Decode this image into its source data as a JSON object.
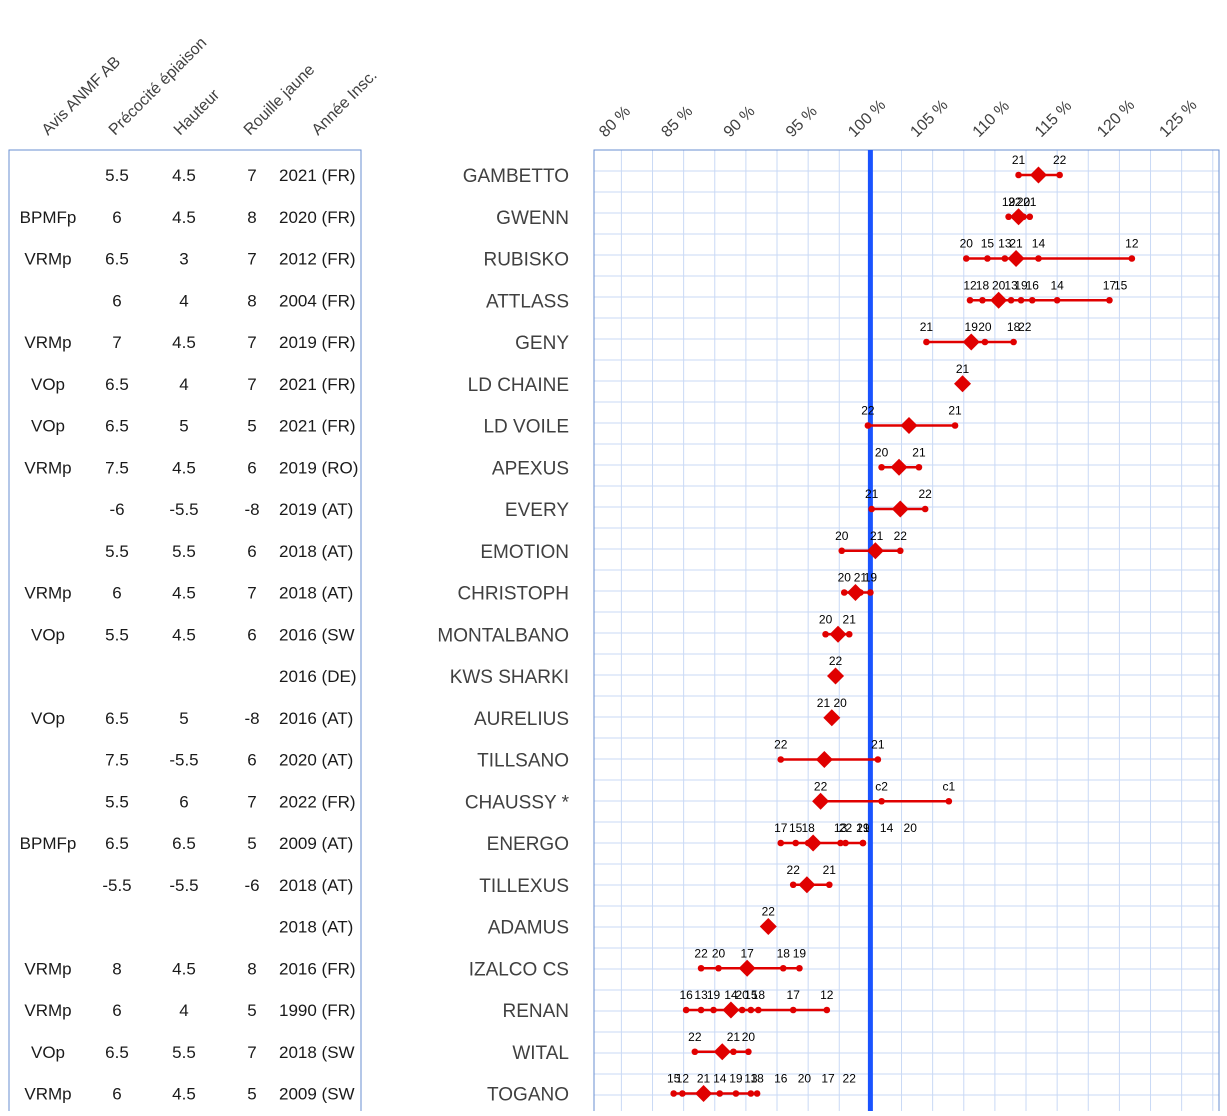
{
  "table": {
    "headers": [
      "Avis ANMF AB",
      "Précocité épiaison",
      "Hauteur",
      "Rouille jaune",
      "Année Insc."
    ],
    "rows": [
      {
        "variety": "GAMBETTO",
        "avis": "",
        "precocite": "5.5",
        "hauteur": "4.5",
        "rouille": "7",
        "annee": "2021 (FR)"
      },
      {
        "variety": "GWENN",
        "avis": "BPMFp",
        "precocite": "6",
        "hauteur": "4.5",
        "rouille": "8",
        "annee": "2020 (FR)"
      },
      {
        "variety": "RUBISKO",
        "avis": "VRMp",
        "precocite": "6.5",
        "hauteur": "3",
        "rouille": "7",
        "annee": "2012 (FR)"
      },
      {
        "variety": "ATTLASS",
        "avis": "",
        "precocite": "6",
        "hauteur": "4",
        "rouille": "8",
        "annee": "2004 (FR)"
      },
      {
        "variety": "GENY",
        "avis": "VRMp",
        "precocite": "7",
        "hauteur": "4.5",
        "rouille": "7",
        "annee": "2019 (FR)"
      },
      {
        "variety": "LD CHAINE",
        "avis": "VOp",
        "precocite": "6.5",
        "hauteur": "4",
        "rouille": "7",
        "annee": "2021 (FR)"
      },
      {
        "variety": "LD VOILE",
        "avis": "VOp",
        "precocite": "6.5",
        "hauteur": "5",
        "rouille": "5",
        "annee": "2021 (FR)"
      },
      {
        "variety": "APEXUS",
        "avis": "VRMp",
        "precocite": "7.5",
        "hauteur": "4.5",
        "rouille": "6",
        "annee": "2019 (RO)"
      },
      {
        "variety": "EVERY",
        "avis": "",
        "precocite": "-6",
        "hauteur": "-5.5",
        "rouille": "-8",
        "annee": "2019 (AT)"
      },
      {
        "variety": "EMOTION",
        "avis": "",
        "precocite": "5.5",
        "hauteur": "5.5",
        "rouille": "6",
        "annee": "2018 (AT)"
      },
      {
        "variety": "CHRISTOPH",
        "avis": "VRMp",
        "precocite": "6",
        "hauteur": "4.5",
        "rouille": "7",
        "annee": "2018 (AT)"
      },
      {
        "variety": "MONTALBANO",
        "avis": "VOp",
        "precocite": "5.5",
        "hauteur": "4.5",
        "rouille": "6",
        "annee": "2016 (SW"
      },
      {
        "variety": "KWS SHARKI",
        "avis": "",
        "precocite": "",
        "hauteur": "",
        "rouille": "",
        "annee": "2016 (DE)"
      },
      {
        "variety": "AURELIUS",
        "avis": "VOp",
        "precocite": "6.5",
        "hauteur": "5",
        "rouille": "-8",
        "annee": "2016 (AT)"
      },
      {
        "variety": "TILLSANO",
        "avis": "",
        "precocite": "7.5",
        "hauteur": "-5.5",
        "rouille": "6",
        "annee": "2020 (AT)"
      },
      {
        "variety": "CHAUSSY  *",
        "avis": "",
        "precocite": "5.5",
        "hauteur": "6",
        "rouille": "7",
        "annee": "2022 (FR)"
      },
      {
        "variety": "ENERGO",
        "avis": "BPMFp",
        "precocite": "6.5",
        "hauteur": "6.5",
        "rouille": "5",
        "annee": "2009 (AT)"
      },
      {
        "variety": "TILLEXUS",
        "avis": "",
        "precocite": "-5.5",
        "hauteur": "-5.5",
        "rouille": "-6",
        "annee": "2018 (AT)"
      },
      {
        "variety": "ADAMUS",
        "avis": "",
        "precocite": "",
        "hauteur": "",
        "rouille": "",
        "annee": "2018 (AT)"
      },
      {
        "variety": "IZALCO CS",
        "avis": "VRMp",
        "precocite": "8",
        "hauteur": "4.5",
        "rouille": "8",
        "annee": "2016 (FR)"
      },
      {
        "variety": "RENAN",
        "avis": "VRMp",
        "precocite": "6",
        "hauteur": "4",
        "rouille": "5",
        "annee": "1990 (FR)"
      },
      {
        "variety": "WITAL",
        "avis": "VOp",
        "precocite": "6.5",
        "hauteur": "5.5",
        "rouille": "7",
        "annee": "2018 (SW"
      },
      {
        "variety": "TOGANO",
        "avis": "VRMp",
        "precocite": "6",
        "hauteur": "4.5",
        "rouille": "5",
        "annee": "2009 (SW"
      }
    ]
  },
  "chart_data": {
    "type": "scatter",
    "x_ticks": [
      "80 %",
      "85 %",
      "90 %",
      "95 %",
      "100 %",
      "105 %",
      "110 %",
      "115 %",
      "120 %",
      "125 %"
    ],
    "xlim": [
      77.8,
      128
    ],
    "reference_line": 100,
    "colors": {
      "points": "#e00000",
      "reference": "#1a53ff",
      "grid": "#c9d9f5",
      "frame": "#6a8fd0"
    },
    "grid": true,
    "rows": [
      {
        "name": "GAMBETTO",
        "mean": 113.5,
        "min": 111.9,
        "max": 115.2,
        "points": [
          {
            "x": 111.9,
            "label": "21"
          },
          {
            "x": 115.2,
            "label": "22"
          }
        ]
      },
      {
        "name": "GWENN",
        "mean": 111.9,
        "min": 111.1,
        "max": 112.8,
        "points": [
          {
            "x": 111.1,
            "label": "19"
          },
          {
            "x": 111.6,
            "label": "22"
          },
          {
            "x": 112.3,
            "label": "20"
          },
          {
            "x": 112.8,
            "label": "21"
          }
        ]
      },
      {
        "name": "RUBISKO",
        "mean": 111.7,
        "min": 107.7,
        "max": 121.0,
        "points": [
          {
            "x": 107.7,
            "label": "20"
          },
          {
            "x": 109.4,
            "label": "15"
          },
          {
            "x": 110.8,
            "label": "13"
          },
          {
            "x": 111.7,
            "label": "21"
          },
          {
            "x": 113.5,
            "label": "14"
          },
          {
            "x": 121.0,
            "label": "12"
          }
        ]
      },
      {
        "name": "ATTLASS",
        "mean": 110.3,
        "min": 108.0,
        "max": 119.2,
        "points": [
          {
            "x": 108.0,
            "label": "12"
          },
          {
            "x": 109.0,
            "label": "18"
          },
          {
            "x": 110.3,
            "label": "20"
          },
          {
            "x": 111.3,
            "label": "13"
          },
          {
            "x": 112.1,
            "label": "19"
          },
          {
            "x": 113.0,
            "label": "16"
          },
          {
            "x": 115.0,
            "label": "14"
          },
          {
            "x": 119.2,
            "label": "17"
          }
        ]
      },
      {
        "name": "GENY",
        "mean": 108.1,
        "min": 104.5,
        "max": 111.5,
        "points": [
          {
            "x": 104.5,
            "label": "21"
          },
          {
            "x": 108.1,
            "label": "19"
          },
          {
            "x": 109.2,
            "label": "20"
          },
          {
            "x": 111.5,
            "label": "18"
          }
        ]
      },
      {
        "name": "LD CHAINE",
        "mean": 107.4,
        "min": 107.4,
        "max": 107.4,
        "points": [
          {
            "x": 107.4,
            "label": "21"
          }
        ]
      },
      {
        "name": "LD VOILE",
        "mean": 103.1,
        "min": 99.8,
        "max": 106.8,
        "points": [
          {
            "x": 99.8,
            "label": "22"
          },
          {
            "x": 106.8,
            "label": "21"
          }
        ]
      },
      {
        "name": "APEXUS",
        "mean": 102.3,
        "min": 100.9,
        "max": 103.9,
        "points": [
          {
            "x": 100.9,
            "label": "20"
          },
          {
            "x": 103.9,
            "label": "21"
          }
        ]
      },
      {
        "name": "EVERY",
        "mean": 102.4,
        "min": 100.1,
        "max": 104.4,
        "points": [
          {
            "x": 100.1,
            "label": "21"
          },
          {
            "x": 104.4,
            "label": "22"
          }
        ]
      },
      {
        "name": "EMOTION",
        "mean": 100.4,
        "min": 97.7,
        "max": 102.4,
        "points": [
          {
            "x": 97.7,
            "label": "20"
          },
          {
            "x": 100.5,
            "label": "21"
          },
          {
            "x": 102.4,
            "label": "22"
          }
        ]
      },
      {
        "name": "CHRISTOPH",
        "mean": 98.8,
        "min": 97.9,
        "max": 100.0,
        "points": [
          {
            "x": 97.9,
            "label": "20"
          },
          {
            "x": 99.2,
            "label": "21"
          },
          {
            "x": 100.0,
            "label": "19"
          }
        ]
      },
      {
        "name": "MONTALBANO",
        "mean": 97.4,
        "min": 96.4,
        "max": 98.3,
        "points": [
          {
            "x": 96.4,
            "label": "20"
          },
          {
            "x": 98.3,
            "label": "21"
          }
        ]
      },
      {
        "name": "KWS SHARKI",
        "mean": 97.2,
        "min": 97.2,
        "max": 97.2,
        "points": [
          {
            "x": 97.2,
            "label": "22"
          }
        ]
      },
      {
        "name": "AURELIUS",
        "mean": 96.9,
        "min": 96.9,
        "max": 96.9,
        "points": [
          {
            "x": 96.9,
            "label": "21 20"
          }
        ]
      },
      {
        "name": "TILLSANO",
        "mean": 96.3,
        "min": 92.8,
        "max": 100.6,
        "points": [
          {
            "x": 92.8,
            "label": "22"
          },
          {
            "x": 100.6,
            "label": "21"
          }
        ]
      },
      {
        "name": "CHAUSSY  *",
        "mean": 96.0,
        "min": 96.0,
        "max": 106.3,
        "points": [
          {
            "x": 96.0,
            "label": "22"
          },
          {
            "x": 100.9,
            "label": "c2"
          },
          {
            "x": 106.3,
            "label": "c1"
          }
        ]
      },
      {
        "name": "ENERGO",
        "mean": 95.4,
        "min": 92.8,
        "max": 99.4,
        "points": [
          {
            "x": 92.8,
            "label": "17"
          },
          {
            "x": 94.0,
            "label": "15"
          },
          {
            "x": 95.0,
            "label": "18"
          },
          {
            "x": 97.6,
            "label": "13"
          },
          {
            "x": 99.4,
            "label": "19"
          }
        ]
      },
      {
        "name": "TILLEXUS",
        "mean": 94.9,
        "min": 93.8,
        "max": 96.7,
        "points": [
          {
            "x": 93.8,
            "label": "22"
          },
          {
            "x": 96.7,
            "label": "21"
          }
        ]
      },
      {
        "name": "ADAMUS",
        "mean": 91.8,
        "min": 91.8,
        "max": 91.8,
        "points": [
          {
            "x": 91.8,
            "label": "22"
          }
        ]
      },
      {
        "name": "IZALCO CS",
        "mean": 90.1,
        "min": 86.4,
        "max": 94.3,
        "points": [
          {
            "x": 86.4,
            "label": "22"
          },
          {
            "x": 87.8,
            "label": "20"
          },
          {
            "x": 90.1,
            "label": "17"
          },
          {
            "x": 93.0,
            "label": "18"
          },
          {
            "x": 94.3,
            "label": "19"
          }
        ]
      },
      {
        "name": "RENAN",
        "mean": 88.8,
        "min": 85.2,
        "max": 96.5,
        "points": [
          {
            "x": 85.2,
            "label": "16"
          },
          {
            "x": 86.4,
            "label": "13"
          },
          {
            "x": 87.4,
            "label": "19"
          },
          {
            "x": 88.8,
            "label": "14"
          },
          {
            "x": 89.7,
            "label": "20"
          },
          {
            "x": 90.4,
            "label": "15"
          },
          {
            "x": 91.0,
            "label": "18"
          },
          {
            "x": 93.8,
            "label": "17"
          },
          {
            "x": 96.5,
            "label": "12"
          }
        ]
      },
      {
        "name": "WITAL",
        "mean": 88.1,
        "min": 85.9,
        "max": 90.2,
        "points": [
          {
            "x": 85.9,
            "label": "22"
          },
          {
            "x": 89.0,
            "label": "21"
          },
          {
            "x": 90.2,
            "label": "20"
          }
        ]
      },
      {
        "name": "TOGANO",
        "mean": 86.6,
        "min": 84.2,
        "max": 90.4,
        "points": [
          {
            "x": 84.2,
            "label": "15"
          },
          {
            "x": 84.9,
            "label": "12"
          },
          {
            "x": 86.6,
            "label": "21"
          },
          {
            "x": 87.9,
            "label": "14"
          },
          {
            "x": 89.2,
            "label": "19"
          },
          {
            "x": 90.4,
            "label": "13"
          }
        ]
      }
    ],
    "extra_labels": [
      {
        "row": "ATTLASS",
        "label": "15",
        "x": 120.1
      },
      {
        "row": "GENY",
        "label": "22",
        "x": 112.4
      },
      {
        "row": "ENERGO",
        "label": "22",
        "x": 98.0
      },
      {
        "row": "ENERGO",
        "label": "21",
        "x": 99.4
      },
      {
        "row": "ENERGO",
        "label": "14",
        "x": 101.3
      },
      {
        "row": "ENERGO",
        "label": "20",
        "x": 103.2
      },
      {
        "row": "TOGANO",
        "label": "18",
        "x": 90.9
      },
      {
        "row": "TOGANO",
        "label": "16",
        "x": 92.8
      },
      {
        "row": "TOGANO",
        "label": "20",
        "x": 94.7
      },
      {
        "row": "TOGANO",
        "label": "17",
        "x": 96.6
      },
      {
        "row": "TOGANO",
        "label": "22",
        "x": 98.3
      }
    ]
  }
}
